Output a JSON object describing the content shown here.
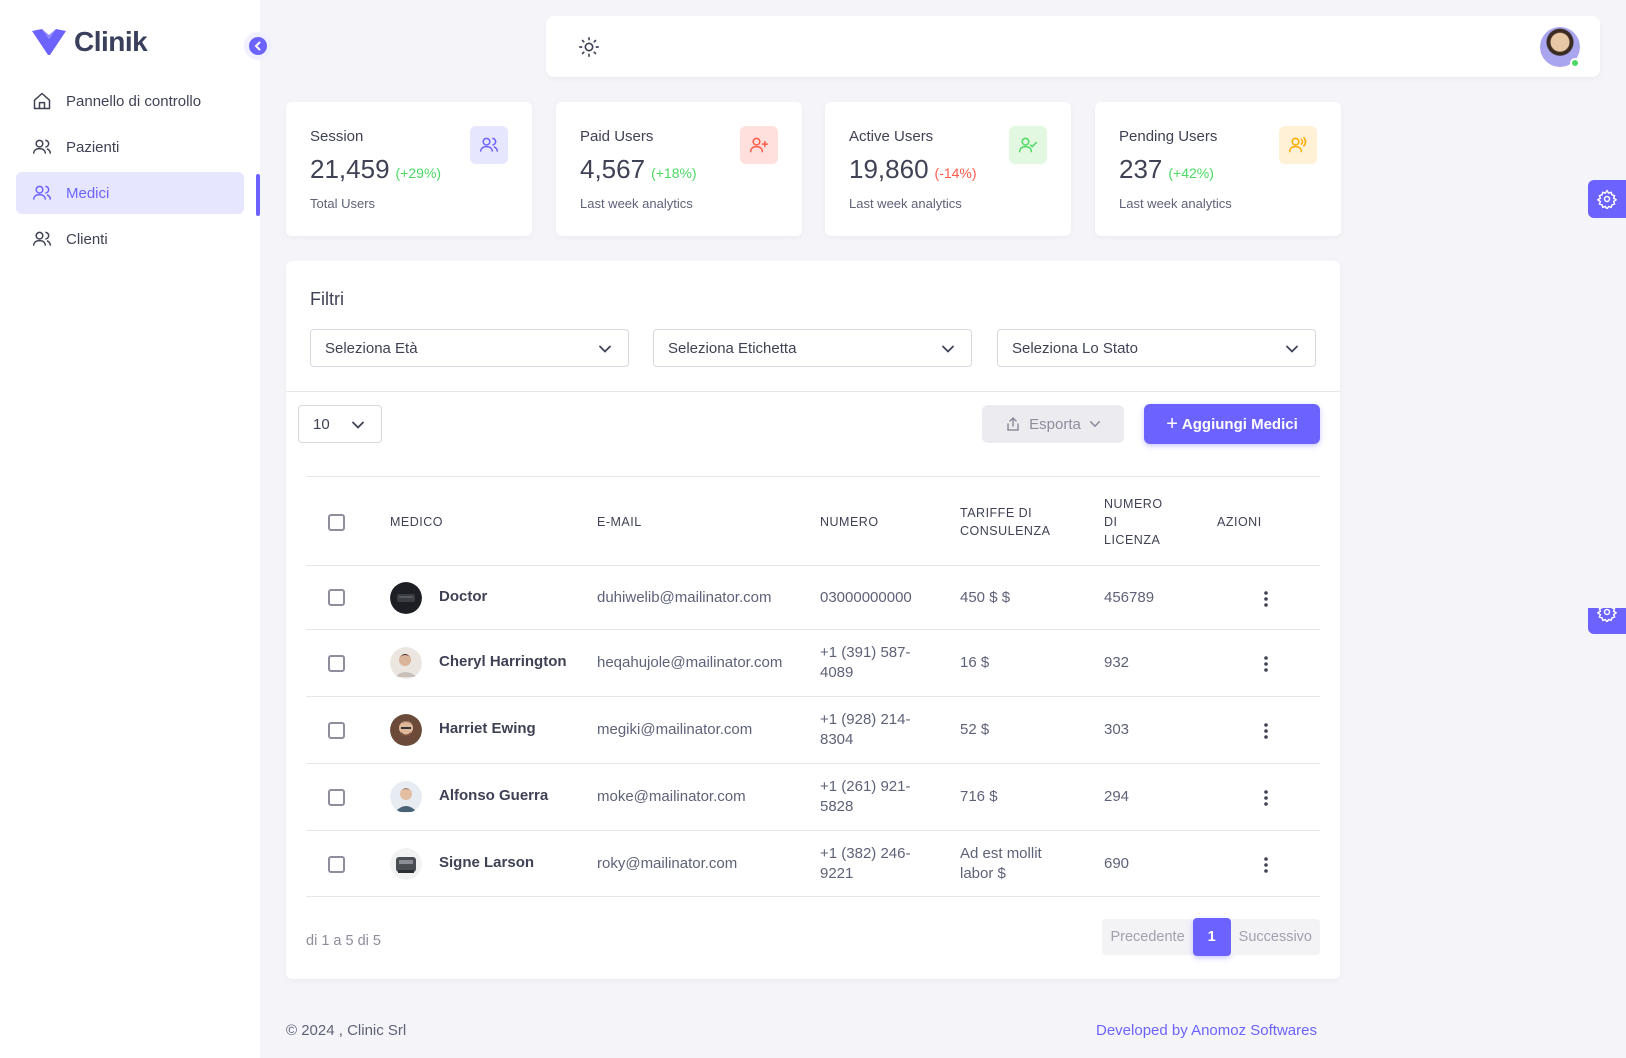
{
  "brand": {
    "name": "Clinik",
    "accent": "#6c63ff"
  },
  "sidebar": {
    "items": [
      {
        "label": "Pannello di controllo",
        "icon": "home-icon"
      },
      {
        "label": "Pazienti",
        "icon": "users-icon"
      },
      {
        "label": "Medici",
        "icon": "users-icon",
        "active": true
      },
      {
        "label": "Clienti",
        "icon": "users-icon"
      }
    ]
  },
  "stats": [
    {
      "title": "Session",
      "value": "21,459",
      "change": "(+29%)",
      "change_color": "#4cd964",
      "sub": "Total Users",
      "icon": "users-icon",
      "icon_bg": "#e7e6ff",
      "icon_color": "#6c63ff"
    },
    {
      "title": "Paid Users",
      "value": "4,567",
      "change": "(+18%)",
      "change_color": "#4cd964",
      "sub": "Last week analytics",
      "icon": "user-plus-icon",
      "icon_bg": "#ffe0dc",
      "icon_color": "#ff5b4a"
    },
    {
      "title": "Active Users",
      "value": "19,860",
      "change": "(-14%)",
      "change_color": "#ff5b4a",
      "sub": "Last week analytics",
      "icon": "user-check-icon",
      "icon_bg": "#e3f8e0",
      "icon_color": "#4cd964"
    },
    {
      "title": "Pending Users",
      "value": "237",
      "change": "(+42%)",
      "change_color": "#4cd964",
      "sub": "Last week analytics",
      "icon": "user-voice-icon",
      "icon_bg": "#fff1d6",
      "icon_color": "#ffab00"
    }
  ],
  "filters": {
    "title": "Filtri",
    "age": "Seleziona Età",
    "label": "Seleziona Etichetta",
    "status": "Seleziona Lo Stato"
  },
  "toolbar": {
    "page_size": "10",
    "export_label": "Esporta",
    "add_label": "Aggiungi Medici"
  },
  "table": {
    "headers": {
      "medico": "MEDICO",
      "email": "E-MAIL",
      "numero": "NUMERO",
      "tariffe_1": "TARIFFE DI",
      "tariffe_2": "CONSULENZA",
      "licenza_1": "NUMERO",
      "licenza_2": "DI",
      "licenza_3": "LICENZA",
      "azioni": "AZIONI"
    },
    "rows": [
      {
        "name": "Doctor",
        "email": "duhiwelib@mailinator.com",
        "phone_1": "03000000000",
        "phone_2": "",
        "fee_1": "450 $ $",
        "fee_2": "",
        "license": "456789"
      },
      {
        "name": "Cheryl Harrington",
        "email": "heqahujole@mailinator.com",
        "phone_1": "+1 (391) 587-",
        "phone_2": "4089",
        "fee_1": "16 $",
        "fee_2": "",
        "license": "932"
      },
      {
        "name": "Harriet Ewing",
        "email": "megiki@mailinator.com",
        "phone_1": "+1 (928) 214-",
        "phone_2": "8304",
        "fee_1": "52 $",
        "fee_2": "",
        "license": "303"
      },
      {
        "name": "Alfonso Guerra",
        "email": "moke@mailinator.com",
        "phone_1": "+1 (261) 921-",
        "phone_2": "5828",
        "fee_1": "716 $",
        "fee_2": "",
        "license": "294"
      },
      {
        "name": "Signe Larson",
        "email": "roky@mailinator.com",
        "phone_1": "+1 (382) 246-",
        "phone_2": "9221",
        "fee_1": "Ad est mollit",
        "fee_2": "labor $",
        "license": "690"
      }
    ],
    "info": "di 1 a 5 di 5"
  },
  "pagination": {
    "prev": "Precedente",
    "current": "1",
    "next": "Successivo"
  },
  "footer": {
    "copyright": "© 2024 , Clinic Srl",
    "developed": "Developed by Anomoz Softwares"
  }
}
